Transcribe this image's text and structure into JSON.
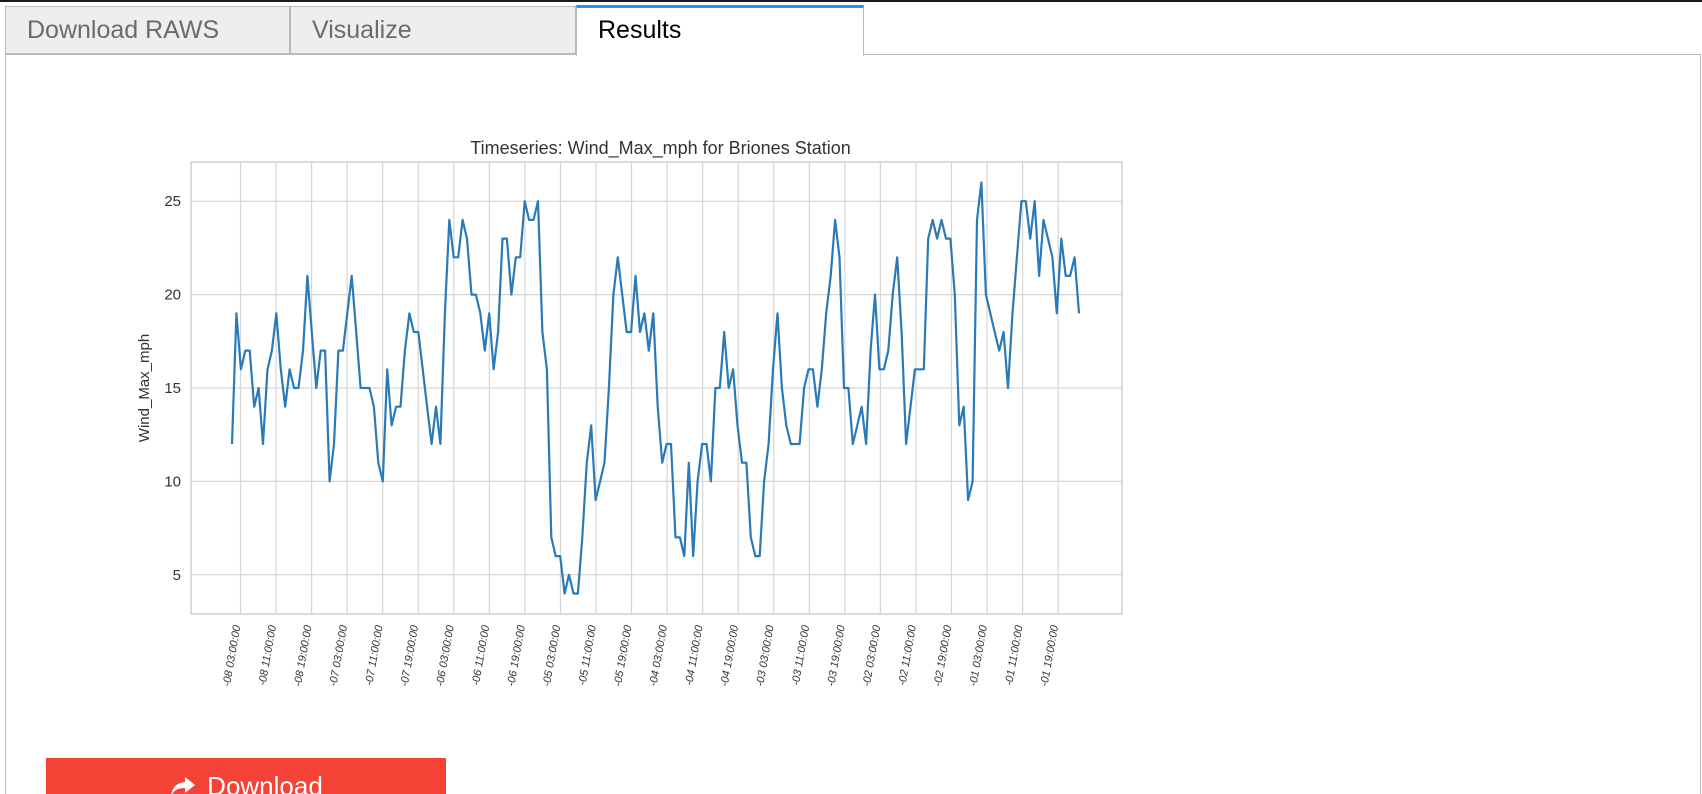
{
  "tabs": [
    {
      "label": "Download RAWS",
      "active": false
    },
    {
      "label": "Visualize",
      "active": false
    },
    {
      "label": "Results",
      "active": true
    }
  ],
  "download_button": {
    "label": "Download",
    "icon": "share-arrow-icon"
  },
  "colors": {
    "line": "#2a7ab8",
    "grid": "#d6d6d6",
    "button": "#f44336",
    "active_tab_accent": "#2a8fe6"
  },
  "chart_data": {
    "type": "line",
    "title": "Timeseries: Wind_Max_mph for Briones Station",
    "xlabel": "",
    "ylabel": "Wind_Max_mph",
    "ylim": [
      2.9,
      27.1
    ],
    "yticks": [
      5,
      10,
      15,
      20,
      25
    ],
    "grid": true,
    "xticks": [
      "-08 03:00:00",
      "-08 11:00:00",
      "-08 19:00:00",
      "-07 03:00:00",
      "-07 11:00:00",
      "-07 19:00:00",
      "-06 03:00:00",
      "-06 11:00:00",
      "-06 19:00:00",
      "-05 03:00:00",
      "-05 11:00:00",
      "-05 19:00:00",
      "-04 03:00:00",
      "-04 11:00:00",
      "-04 19:00:00",
      "-03 03:00:00",
      "-03 11:00:00",
      "-03 19:00:00",
      "-02 03:00:00",
      "-02 11:00:00",
      "-02 19:00:00",
      "-01 03:00:00",
      "-01 11:00:00",
      "-01 19:00:00"
    ],
    "series": [
      {
        "name": "Wind_Max_mph",
        "values": [
          12,
          19,
          16,
          17,
          17,
          14,
          15,
          12,
          16,
          17,
          19,
          16,
          14,
          16,
          15,
          15,
          17,
          21,
          18,
          15,
          17,
          17,
          10,
          12,
          17,
          17,
          19,
          21,
          18,
          15,
          15,
          15,
          14,
          11,
          10,
          16,
          13,
          14,
          14,
          17,
          19,
          18,
          18,
          16,
          14,
          12,
          14,
          12,
          19,
          24,
          22,
          22,
          24,
          23,
          20,
          20,
          19,
          17,
          19,
          16,
          18,
          23,
          23,
          20,
          22,
          22,
          25,
          24,
          24,
          25,
          18,
          16,
          7,
          6,
          6,
          4,
          5,
          4,
          4,
          7,
          11,
          13,
          9,
          10,
          11,
          15,
          20,
          22,
          20,
          18,
          18,
          21,
          18,
          19,
          17,
          19,
          14,
          11,
          12,
          12,
          7,
          7,
          6,
          11,
          6,
          10,
          12,
          12,
          10,
          15,
          15,
          18,
          15,
          16,
          13,
          11,
          11,
          7,
          6,
          6,
          10,
          12,
          16,
          19,
          15,
          13,
          12,
          12,
          12,
          15,
          16,
          16,
          14,
          16,
          19,
          21,
          24,
          22,
          15,
          15,
          12,
          13,
          14,
          12,
          17,
          20,
          16,
          16,
          17,
          20,
          22,
          18,
          12,
          14,
          16,
          16,
          16,
          23,
          24,
          23,
          24,
          23,
          23,
          20,
          13,
          14,
          9,
          10,
          24,
          26,
          20,
          19,
          18,
          17,
          18,
          15,
          19,
          22,
          25,
          25,
          23,
          25,
          21,
          24,
          23,
          22,
          19,
          23,
          21,
          21,
          22,
          19
        ]
      }
    ]
  }
}
